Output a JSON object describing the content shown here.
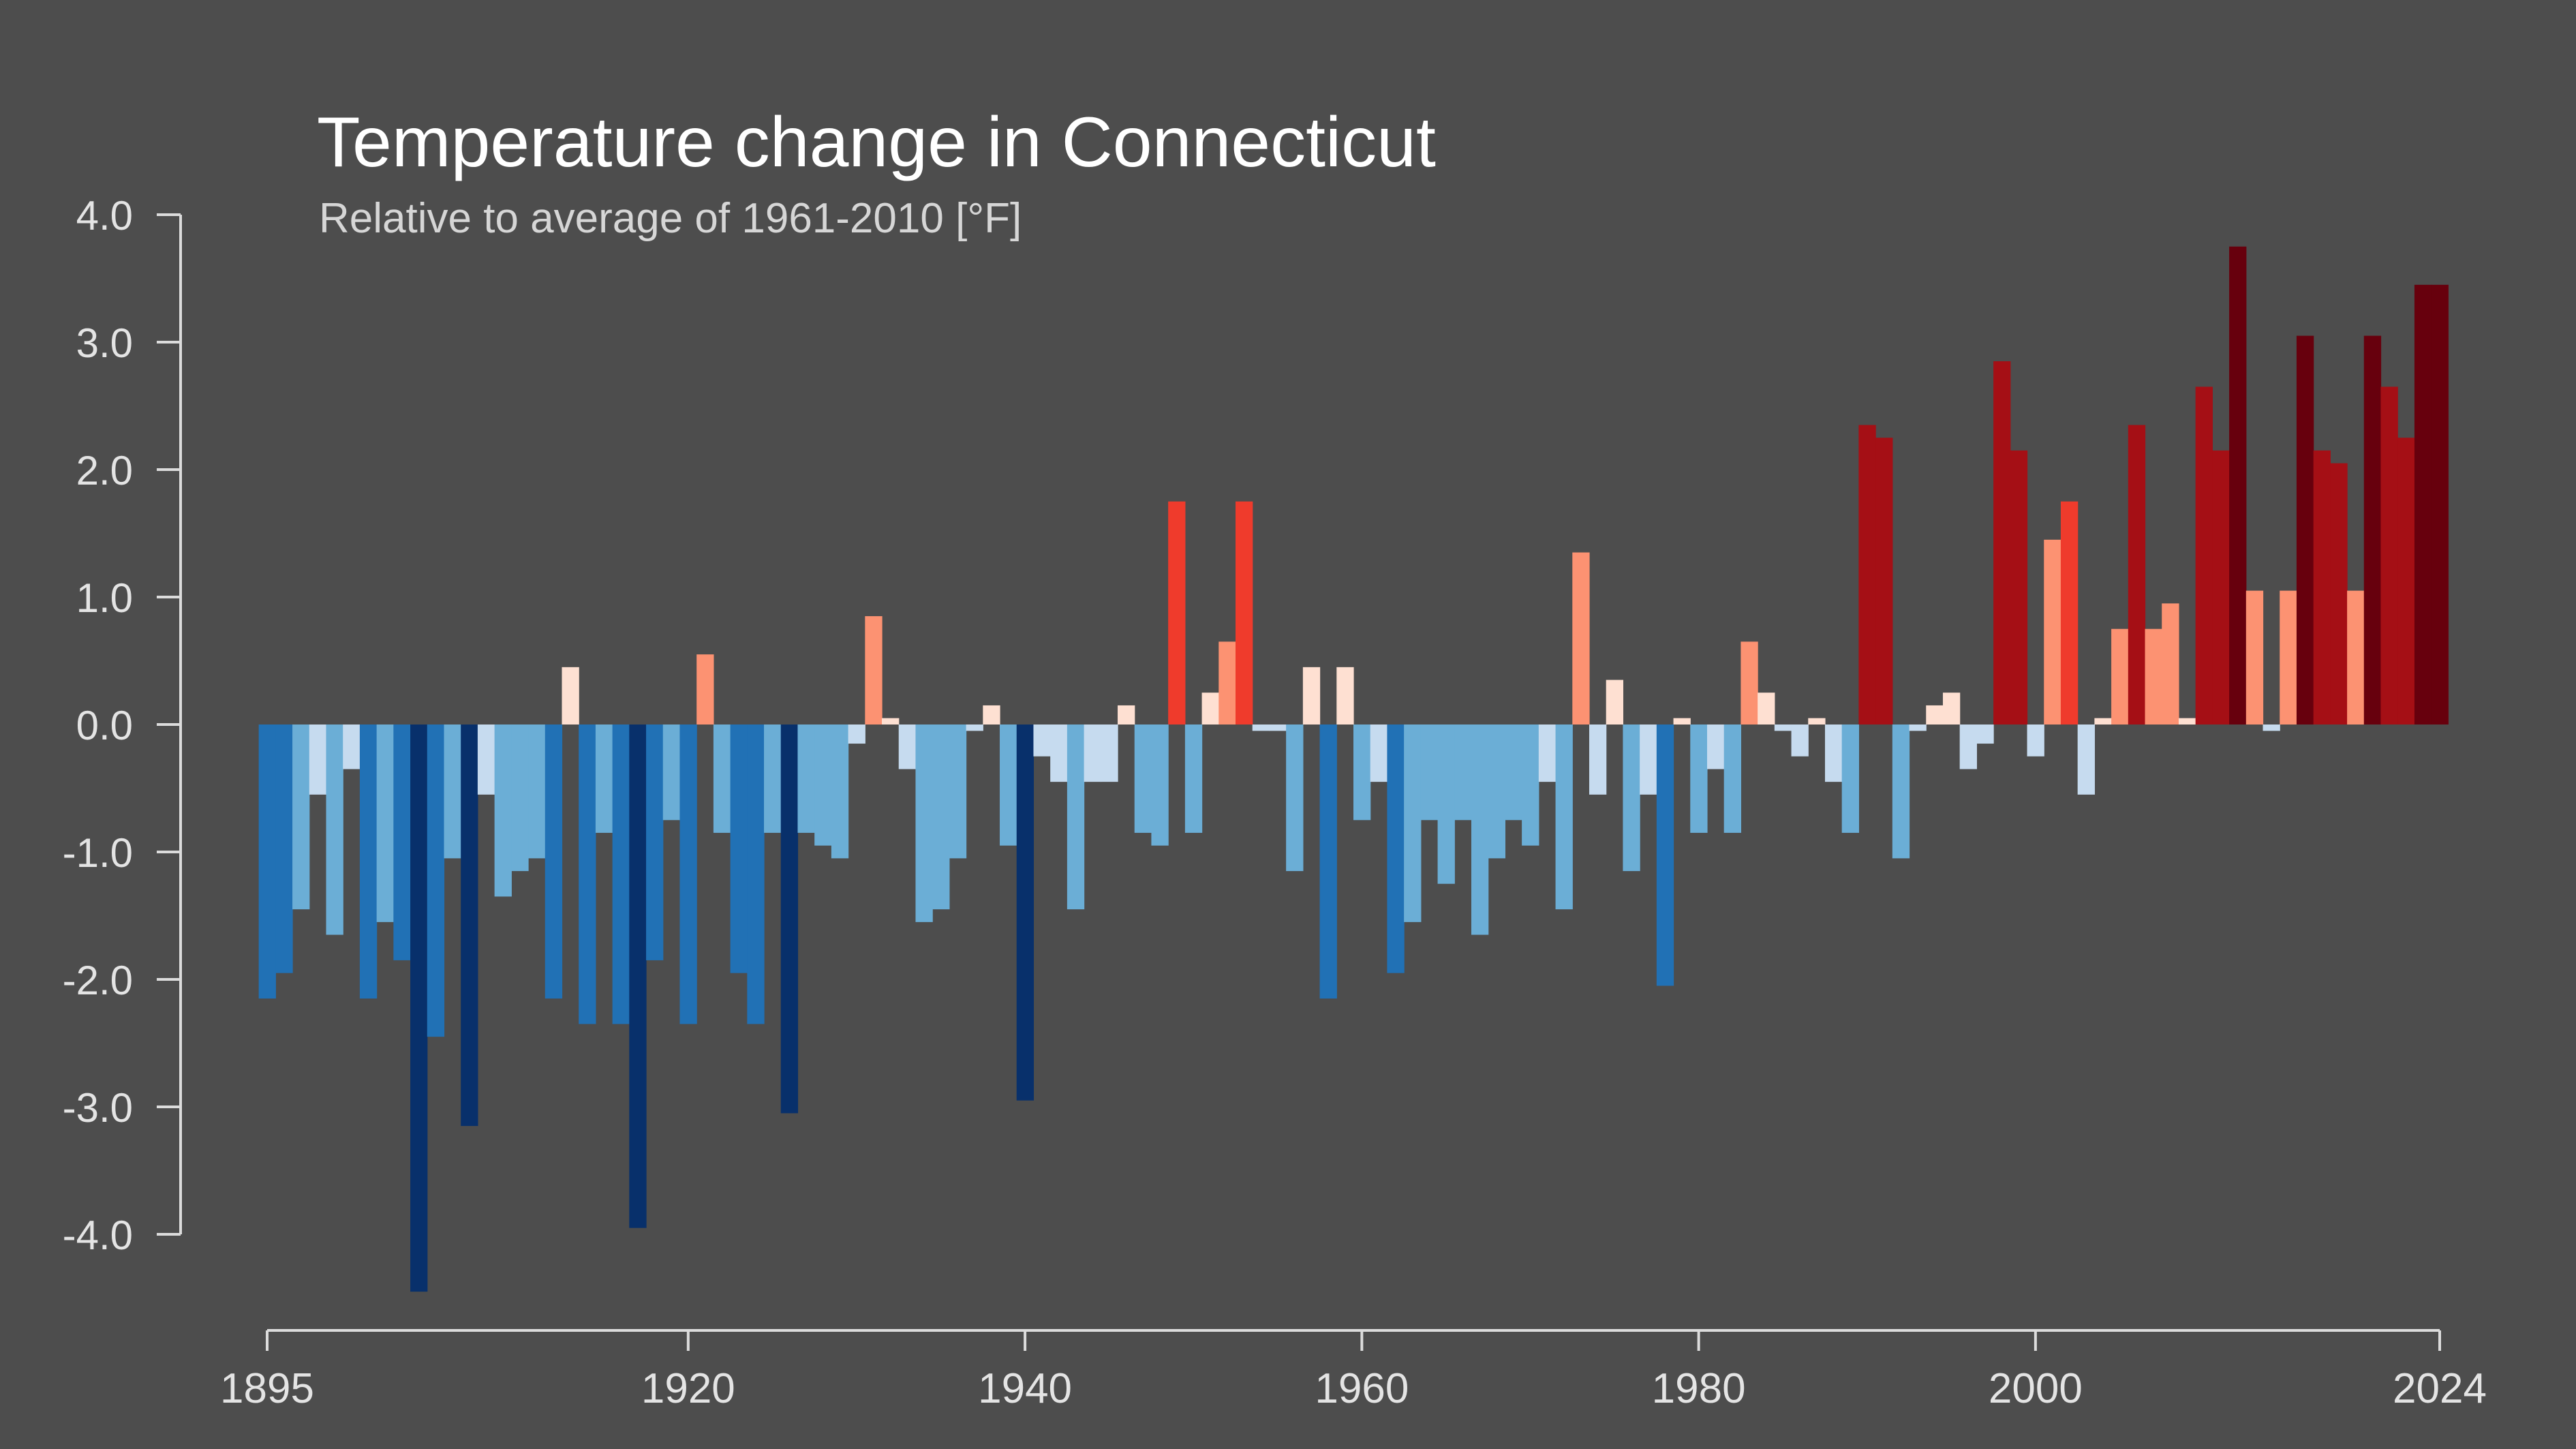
{
  "chart_data": {
    "type": "bar",
    "title": "Temperature change in Connecticut",
    "subtitle": "Relative to average of 1961-2010  [°F]",
    "xlabel": "",
    "ylabel": "",
    "ylim": [
      -4.5,
      4.0
    ],
    "y_ticks": [
      "4.0",
      "3.0",
      "2.0",
      "1.0",
      "0.0",
      "-1.0",
      "-2.0",
      "-3.0",
      "-4.0"
    ],
    "x_ticks": [
      "1895",
      "1920",
      "1940",
      "1960",
      "1980",
      "2000",
      "2024"
    ],
    "x_start": 1895,
    "x_end": 2024,
    "grid": false,
    "color_scale": [
      "#08306b",
      "#2171b5",
      "#6baed6",
      "#c6dbef",
      "#fee0d2",
      "#fc9272",
      "#ef3b2c",
      "#a50f15",
      "#67000d"
    ],
    "series": [
      {
        "x": [
          1895,
          1896,
          1897,
          1898,
          1899,
          1900,
          1901,
          1902,
          1903,
          1904,
          1905,
          1906,
          1907,
          1908,
          1909,
          1910,
          1911,
          1912,
          1913,
          1914,
          1915,
          1916,
          1917,
          1918,
          1919,
          1920,
          1921,
          1922,
          1923,
          1924,
          1925,
          1926,
          1927,
          1928,
          1929,
          1930,
          1931,
          1932,
          1933,
          1934,
          1935,
          1936,
          1937,
          1938,
          1939,
          1940,
          1941,
          1942,
          1943,
          1944,
          1945,
          1946,
          1947,
          1948,
          1949,
          1950,
          1951,
          1952,
          1953,
          1954,
          1955,
          1956,
          1957,
          1958,
          1959,
          1960,
          1961,
          1962,
          1963,
          1964,
          1965,
          1966,
          1967,
          1968,
          1969,
          1970,
          1971,
          1972,
          1973,
          1974,
          1975,
          1976,
          1977,
          1978,
          1979,
          1980,
          1981,
          1982,
          1983,
          1984,
          1985,
          1986,
          1987,
          1988,
          1989,
          1990,
          1991,
          1992,
          1993,
          1994,
          1995,
          1996,
          1997,
          1998,
          1999,
          2000,
          2001,
          2002,
          2003,
          2004,
          2005,
          2006,
          2007,
          2008,
          2009,
          2010,
          2011,
          2012,
          2013,
          2014,
          2015,
          2016,
          2017,
          2018,
          2019,
          2020,
          2021,
          2022,
          2023,
          2024
        ],
        "values": [
          -2.15,
          -1.95,
          -1.45,
          -0.55,
          -1.65,
          -0.35,
          -2.15,
          -1.55,
          -1.85,
          -4.45,
          -2.45,
          -1.05,
          -3.15,
          -0.55,
          -1.35,
          -1.15,
          -1.05,
          -2.15,
          0.45,
          -2.35,
          -0.85,
          -2.35,
          -3.95,
          -1.85,
          -0.75,
          -2.35,
          0.55,
          -0.85,
          -1.95,
          -2.35,
          -0.85,
          -3.05,
          -0.85,
          -0.95,
          -1.05,
          -0.15,
          0.85,
          0.05,
          -0.35,
          -1.55,
          -1.45,
          -1.05,
          -0.05,
          0.15,
          -0.95,
          -2.95,
          -0.25,
          -0.45,
          -1.45,
          -0.45,
          -0.45,
          0.15,
          -0.85,
          -0.95,
          1.75,
          -0.85,
          0.25,
          0.65,
          1.75,
          -0.05,
          -0.05,
          -1.15,
          0.45,
          -2.15,
          0.45,
          -0.75,
          -0.45,
          -1.95,
          -1.55,
          -0.75,
          -1.25,
          -0.75,
          -1.65,
          -1.05,
          -0.75,
          -0.95,
          -0.45,
          -1.45,
          1.35,
          -0.55,
          0.35,
          -1.15,
          -0.55,
          -2.05,
          0.05,
          -0.85,
          -0.35,
          -0.85,
          0.65,
          0.25,
          -0.05,
          -0.25,
          0.05,
          -0.45,
          -0.85,
          2.35,
          2.25,
          -1.05,
          -0.05,
          0.15,
          0.25,
          -0.35,
          -0.15,
          2.85,
          2.15,
          -0.25,
          1.45,
          1.75,
          -0.55,
          0.05,
          0.75,
          2.35,
          0.75,
          0.95,
          0.05,
          2.65,
          2.15,
          3.75,
          1.05,
          -0.05,
          1.05,
          3.05,
          2.15,
          2.05,
          1.05,
          3.05,
          2.65,
          2.25,
          3.45,
          3.45
        ]
      }
    ]
  }
}
